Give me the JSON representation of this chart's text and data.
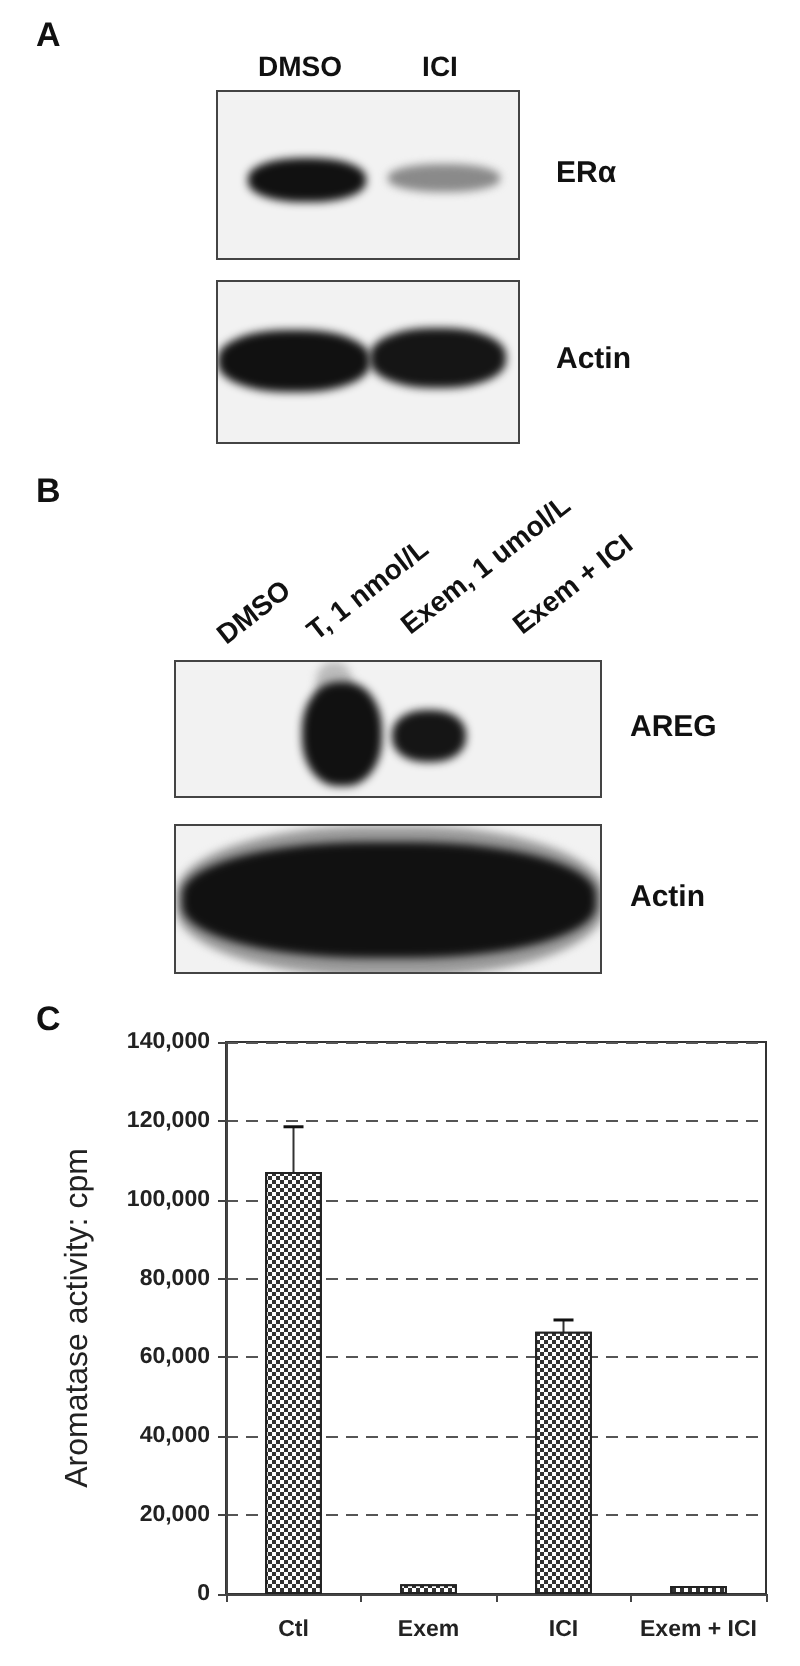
{
  "chart_data": [
    {
      "type": "other",
      "title": "A",
      "annotations": [
        "DMSO",
        "ICI",
        "ERα",
        "Actin"
      ]
    },
    {
      "type": "other",
      "title": "B",
      "annotations": [
        "DMSO",
        "T, 1 nmol/L",
        "Exem, 1 umol/L",
        "Exem + ICI",
        "AREG",
        "Actin"
      ]
    },
    {
      "type": "bar",
      "title": "C",
      "categories": [
        "Ctl",
        "Exem",
        "ICI",
        "Exem + ICI"
      ],
      "values": [
        107000,
        2500,
        66500,
        2000
      ],
      "errors": [
        11500,
        null,
        3000,
        null
      ],
      "color": "#333333",
      "ylabel": "Aromatase activity: cpm",
      "ylim": [
        0,
        140000
      ],
      "yticks": [
        0,
        {
          "value": 20000,
          "label": "20,000"
        },
        {
          "value": 40000,
          "label": "40,000"
        },
        {
          "value": 60000,
          "label": "60,000"
        },
        {
          "value": 80000,
          "label": "80,000"
        },
        {
          "value": 100000,
          "label": "100,000"
        },
        {
          "value": 120000,
          "label": "120,000"
        },
        {
          "value": 140000,
          "label": "140,000"
        }
      ],
      "grid": "y"
    }
  ]
}
